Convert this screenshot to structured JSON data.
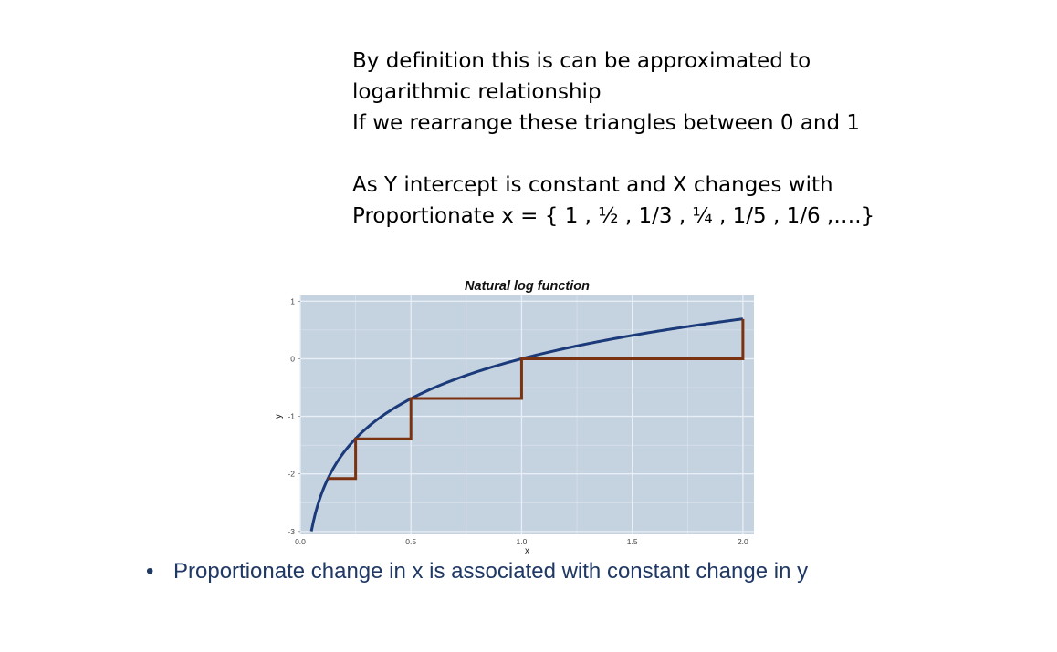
{
  "intro_text": {
    "line1": "By definition this is can be approximated to",
    "line2": "logarithmic relationship",
    "line3": "If we rearrange these triangles between 0 and 1",
    "line4": "",
    "line5": "As Y intercept is constant and X changes with",
    "line6": "Proportionate x = { 1 , ½ , 1/3 , ¼ , 1/5 , 1/6 ,….}"
  },
  "bullet": {
    "symbol": "•",
    "text": "Proportionate change in x is associated with constant change in y"
  },
  "colors": {
    "curve": "#1b3a7a",
    "steps": "#7b3210",
    "panel_background": "#c5d2e0",
    "grid": "#e8eef5",
    "bullet_text": "#1f3864"
  },
  "chart_data": {
    "type": "line",
    "title": "Natural log function",
    "xlabel": "x",
    "ylabel": "y",
    "xlim": [
      0.0,
      2.05
    ],
    "ylim": [
      -3.05,
      1.1
    ],
    "x_ticks": [
      0.0,
      0.5,
      1.0,
      1.5,
      2.0
    ],
    "x_tick_labels": [
      "0.0",
      "0.5",
      "1.0",
      "1.5",
      "2.0"
    ],
    "y_ticks": [
      1,
      0,
      -1,
      -2,
      -3
    ],
    "y_tick_labels": [
      "1",
      "0",
      "-1",
      "-2",
      "-3"
    ],
    "grid": true,
    "series": [
      {
        "kind": "function",
        "function": "ln(x)",
        "x_range": [
          0.05,
          2.0
        ]
      },
      {
        "kind": "step",
        "points": [
          [
            0.125,
            -2.08
          ],
          [
            0.25,
            -2.08
          ],
          [
            0.25,
            -1.39
          ],
          [
            0.5,
            -1.39
          ],
          [
            0.5,
            -0.69
          ],
          [
            1.0,
            -0.69
          ],
          [
            1.0,
            0.0
          ],
          [
            2.0,
            0.0
          ],
          [
            2.0,
            0.69
          ]
        ]
      }
    ]
  }
}
